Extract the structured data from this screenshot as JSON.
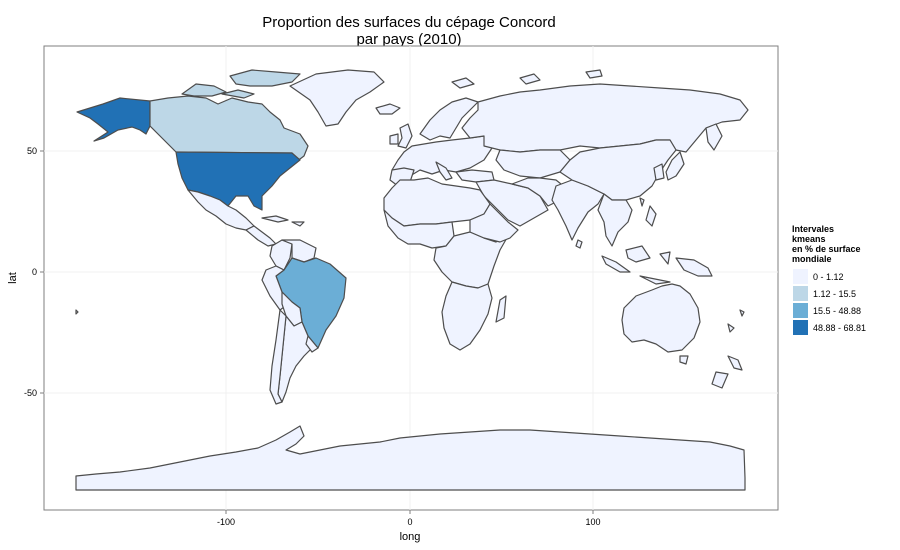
{
  "title_line1": "Proportion des surfaces du cépage Concord",
  "title_line2": "par pays (2010)",
  "axes": {
    "xlabel": "long",
    "ylabel": "lat",
    "x_ticks": [
      "-100",
      "0",
      "100"
    ],
    "y_ticks": [
      "50",
      "0",
      "-50"
    ]
  },
  "legend": {
    "title": "Intervales\n kmeans\n en % de surface\n mondiale",
    "classes": [
      {
        "label": "0 - 1.12",
        "color": "#eff3ff"
      },
      {
        "label": "1.12 - 15.5",
        "color": "#bdd7e7"
      },
      {
        "label": "15.5 - 48.88",
        "color": "#6baed6"
      },
      {
        "label": "48.88 - 68.81",
        "color": "#2171b5"
      }
    ]
  },
  "highlighted_countries": [
    {
      "name": "United States",
      "class": "48.88 - 68.81"
    },
    {
      "name": "Brazil",
      "class": "15.5 - 48.88"
    },
    {
      "name": "Canada",
      "class": "1.12 - 15.5"
    }
  ],
  "colors": {
    "border": "#4d4d4d",
    "grid": "#f0f0f0",
    "panel_border": "#7f7f7f"
  }
}
